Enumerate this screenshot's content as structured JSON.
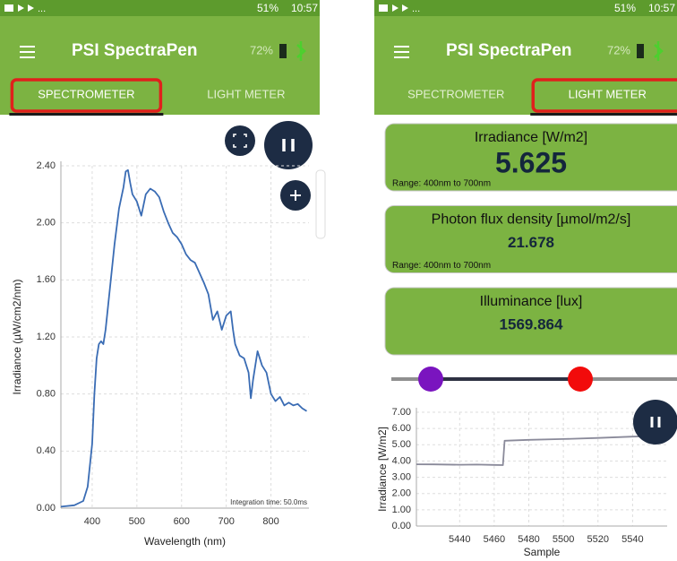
{
  "screens": [
    {
      "status_bar": {
        "battery": "51%",
        "time": "10:57"
      },
      "app_bar": {
        "title": "PSI SpectraPen",
        "battery": "72%"
      },
      "tabs": [
        "SPECTROMETER",
        "LIGHT METER"
      ],
      "active_tab": 0
    },
    {
      "status_bar": {
        "battery": "51%",
        "time": "10:57"
      },
      "app_bar": {
        "title": "PSI SpectraPen",
        "battery": "72%"
      },
      "tabs": [
        "SPECTROMETER",
        "LIGHT METER"
      ],
      "active_tab": 1,
      "cards": [
        {
          "title": "Irradiance [W/m2]",
          "value": 5.625,
          "range": "Range: 400nm to 700nm"
        },
        {
          "title": "Photon flux density [µmol/m2/s]",
          "value": 21.678,
          "range": "Range: 400nm to 700nm"
        },
        {
          "title": "Illuminance [lux]",
          "value": 1569.864
        }
      ]
    }
  ],
  "chart_data": [
    {
      "type": "line",
      "x_label": "Wavelength (nm)",
      "y_label": "Irradiance (µW/cm2/nm)",
      "annotation": "Integration time: 50.0ms",
      "x": [
        330,
        360,
        380,
        390,
        400,
        405,
        410,
        415,
        420,
        425,
        430,
        440,
        450,
        460,
        470,
        475,
        480,
        485,
        490,
        500,
        510,
        520,
        530,
        540,
        550,
        560,
        570,
        580,
        590,
        600,
        610,
        620,
        630,
        640,
        650,
        660,
        670,
        680,
        690,
        700,
        710,
        715,
        720,
        730,
        740,
        750,
        755,
        760,
        770,
        780,
        790,
        800,
        810,
        820,
        830,
        840,
        850,
        860,
        870,
        880
      ],
      "series": [
        {
          "color": "#3a6cb4",
          "values": [
            0.01,
            0.02,
            0.05,
            0.15,
            0.45,
            0.8,
            1.05,
            1.15,
            1.17,
            1.15,
            1.25,
            1.55,
            1.85,
            2.1,
            2.25,
            2.36,
            2.37,
            2.28,
            2.2,
            2.15,
            2.05,
            2.2,
            2.24,
            2.22,
            2.18,
            2.08,
            2.0,
            1.93,
            1.9,
            1.85,
            1.78,
            1.74,
            1.72,
            1.65,
            1.58,
            1.5,
            1.32,
            1.38,
            1.25,
            1.35,
            1.38,
            1.25,
            1.15,
            1.07,
            1.05,
            0.95,
            0.77,
            0.9,
            1.1,
            1.0,
            0.95,
            0.8,
            0.75,
            0.78,
            0.72,
            0.74,
            0.72,
            0.73,
            0.7,
            0.68
          ]
        }
      ],
      "xlim": [
        330,
        885
      ],
      "ylim": [
        0,
        2.4
      ],
      "xticks": [
        400,
        500,
        600,
        700,
        800
      ],
      "yticks": [
        {
          "value": 0,
          "label": "0.00"
        },
        {
          "value": 0.4,
          "label": "0.40"
        },
        {
          "value": 0.8,
          "label": "0.80"
        },
        {
          "value": 1.2,
          "label": "1.20"
        },
        {
          "value": 1.6,
          "label": "1.60"
        },
        {
          "value": 2.0,
          "label": "2.00"
        },
        {
          "value": 2.4,
          "label": "2.40"
        }
      ],
      "grid": true
    },
    {
      "type": "line",
      "x_label": "Sample",
      "y_label": "Irradiance [W/m2]",
      "x": [
        5415,
        5425,
        5440,
        5450,
        5460,
        5465,
        5466,
        5480,
        5500,
        5520,
        5540,
        5558
      ],
      "series": [
        {
          "color": "#8a8a9a",
          "values": [
            3.8,
            3.79,
            3.77,
            3.78,
            3.76,
            3.75,
            5.25,
            5.3,
            5.35,
            5.42,
            5.5,
            5.55
          ]
        }
      ],
      "xlim": [
        5415,
        5560
      ],
      "ylim": [
        0,
        7
      ],
      "xticks": [
        5440,
        5460,
        5480,
        5500,
        5520,
        5540
      ],
      "yticks": [
        {
          "value": 0,
          "label": "0.00"
        },
        {
          "value": 1,
          "label": "1.00"
        },
        {
          "value": 2,
          "label": "2.00"
        },
        {
          "value": 3,
          "label": "3.00"
        },
        {
          "value": 4,
          "label": "4.00"
        },
        {
          "value": 5,
          "label": "5.00"
        },
        {
          "value": 6,
          "label": "6.00"
        },
        {
          "value": 7,
          "label": "7.00"
        }
      ],
      "grid": true
    }
  ]
}
